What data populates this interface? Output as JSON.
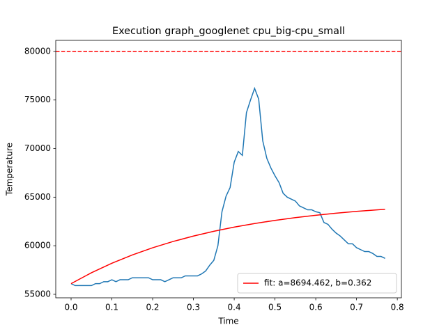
{
  "chart_data": {
    "type": "line",
    "title": "Execution graph_googlenet cpu_big-cpu_small",
    "xlabel": "Time",
    "ylabel": "Temperature",
    "xlim": [
      -0.0376,
      0.81
    ],
    "ylim": [
      54640,
      81140
    ],
    "xticks": [
      {
        "value": 0,
        "label": "0.0"
      },
      0.1,
      0.2,
      0.3,
      0.4,
      0.5,
      0.6,
      0.7,
      0.8
    ],
    "yticks": [
      55000,
      60000,
      65000,
      70000,
      75000,
      80000
    ],
    "legend": "lower right",
    "reference_lines": [
      {
        "value": 80000,
        "color": "#ff0000",
        "style": "dashed"
      }
    ],
    "series": [
      {
        "color": "#1f77b4",
        "x": [
          0,
          0.01,
          0.02,
          0.03,
          0.04,
          0.05,
          0.06,
          0.07,
          0.08,
          0.09,
          0.1,
          0.11,
          0.12,
          0.13,
          0.14,
          0.15,
          0.16,
          0.17,
          0.18,
          0.19,
          0.2,
          0.21,
          0.22,
          0.23,
          0.24,
          0.25,
          0.26,
          0.27,
          0.28,
          0.29,
          0.3,
          0.31,
          0.32,
          0.33,
          0.34,
          0.35,
          0.36,
          0.37,
          0.38,
          0.39,
          0.4,
          0.41,
          0.42,
          0.43,
          0.44,
          0.45,
          0.46,
          0.47,
          0.48,
          0.49,
          0.5,
          0.51,
          0.52,
          0.53,
          0.54,
          0.55,
          0.56,
          0.57,
          0.58,
          0.59,
          0.6,
          0.61,
          0.62,
          0.63,
          0.64,
          0.65,
          0.66,
          0.67,
          0.68,
          0.69,
          0.7,
          0.71,
          0.72,
          0.73,
          0.74,
          0.75,
          0.76,
          0.77
        ],
        "values": [
          56100,
          55900,
          55900,
          55900,
          55900,
          55900,
          56100,
          56100,
          56300,
          56300,
          56500,
          56300,
          56500,
          56500,
          56500,
          56700,
          56700,
          56700,
          56700,
          56700,
          56500,
          56500,
          56500,
          56300,
          56500,
          56700,
          56700,
          56700,
          56900,
          56900,
          56900,
          56900,
          57100,
          57400,
          58000,
          58500,
          60000,
          63500,
          65100,
          66000,
          68600,
          69700,
          69300,
          73700,
          75000,
          76200,
          75100,
          70800,
          69000,
          68000,
          67200,
          66500,
          65400,
          65000,
          64800,
          64600,
          64100,
          63900,
          63700,
          63700,
          63500,
          63400,
          62400,
          62200,
          61700,
          61300,
          61000,
          60600,
          60200,
          60200,
          59800,
          59600,
          59400,
          59400,
          59200,
          58900,
          58900,
          58700
        ]
      },
      {
        "name": "fit: a=8694.462, b=0.362",
        "color": "#ff0000",
        "x": [
          0,
          0.05,
          0.1,
          0.15,
          0.2,
          0.25,
          0.3,
          0.35,
          0.4,
          0.45,
          0.5,
          0.55,
          0.6,
          0.65,
          0.7,
          0.77
        ],
        "values": [
          56100,
          57221,
          58198,
          59049,
          59791,
          60436,
          60998,
          61488,
          61915,
          62286,
          62610,
          62891,
          63137,
          63351,
          63537,
          63758
        ]
      }
    ]
  }
}
